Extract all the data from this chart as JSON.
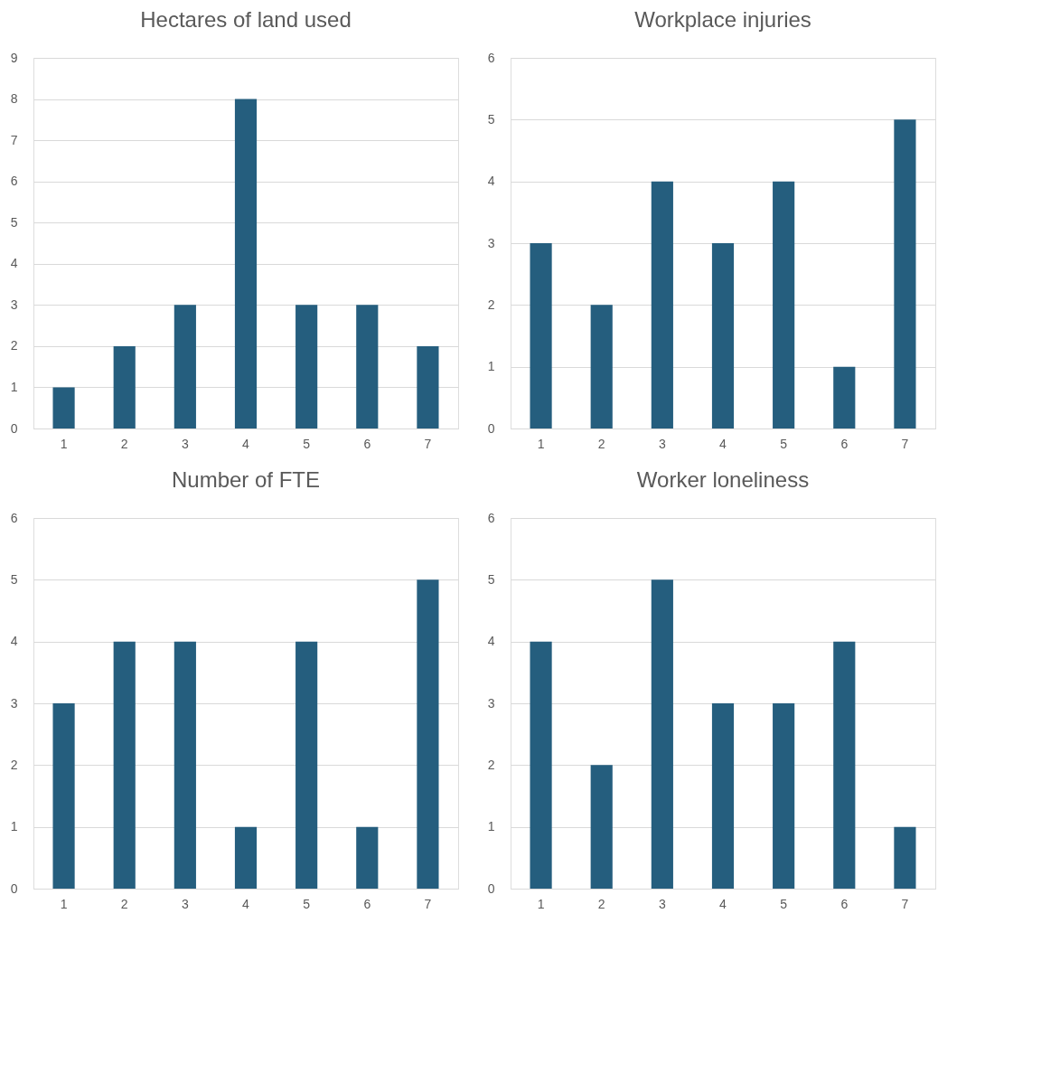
{
  "chart_data": [
    {
      "type": "bar",
      "title": "Hectares of land used",
      "categories": [
        "1",
        "2",
        "3",
        "4",
        "5",
        "6",
        "7"
      ],
      "values": [
        1,
        2,
        3,
        8,
        3,
        3,
        2
      ],
      "color": "#255e7e",
      "ylim": [
        0,
        9
      ],
      "yticks": [
        0,
        1,
        2,
        3,
        4,
        5,
        6,
        7,
        8,
        9
      ],
      "grid": "y"
    },
    {
      "type": "bar",
      "title": "Workplace injuries",
      "categories": [
        "1",
        "2",
        "3",
        "4",
        "5",
        "6",
        "7"
      ],
      "values": [
        3,
        2,
        4,
        3,
        4,
        1,
        5
      ],
      "color": "#255e7e",
      "ylim": [
        0,
        6
      ],
      "yticks": [
        0,
        1,
        2,
        3,
        4,
        5,
        6
      ],
      "grid": "y"
    },
    {
      "type": "bar",
      "title": "Number of FTE",
      "categories": [
        "1",
        "2",
        "3",
        "4",
        "5",
        "6",
        "7"
      ],
      "values": [
        3,
        4,
        4,
        1,
        4,
        1,
        5
      ],
      "color": "#255e7e",
      "ylim": [
        0,
        6
      ],
      "yticks": [
        0,
        1,
        2,
        3,
        4,
        5,
        6
      ],
      "grid": "y"
    },
    {
      "type": "bar",
      "title": "Worker loneliness",
      "categories": [
        "1",
        "2",
        "3",
        "4",
        "5",
        "6",
        "7"
      ],
      "values": [
        4,
        2,
        5,
        3,
        3,
        4,
        1
      ],
      "color": "#255e7e",
      "ylim": [
        0,
        6
      ],
      "yticks": [
        0,
        1,
        2,
        3,
        4,
        5,
        6
      ],
      "grid": "y"
    }
  ]
}
